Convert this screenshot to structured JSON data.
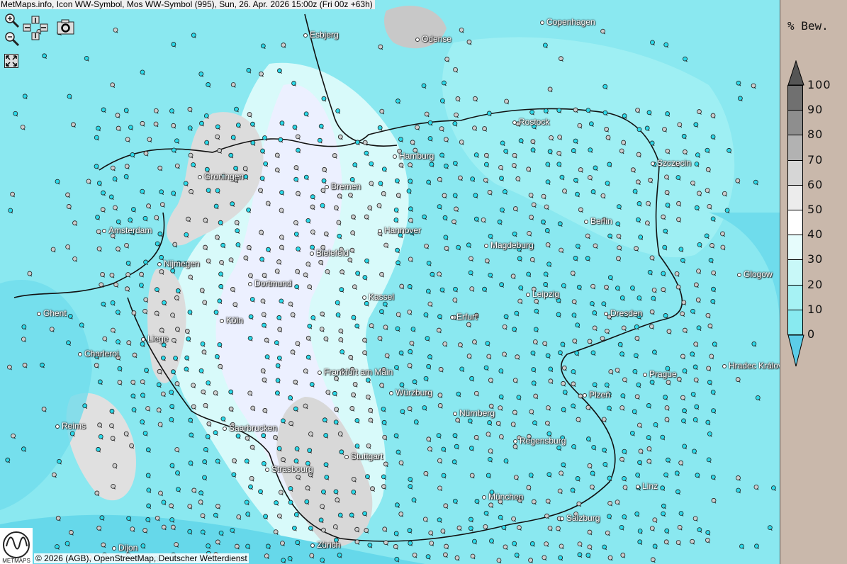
{
  "title": "MetMaps.info, Icon WW-Symbol, Mos WW-Symbol (995), Sun, 26. Apr. 2026 15:00z (Fri 00z +63h)",
  "controls": [
    "zoom-in-icon",
    "zoom-out-icon",
    "pan-arrows-icon",
    "camera-icon",
    "fullscreen-icon"
  ],
  "legend": {
    "title": "% Bew.",
    "ticks": [
      "100",
      "90",
      "80",
      "70",
      "60",
      "50",
      "40",
      "30",
      "20",
      "10",
      "0"
    ],
    "colors": [
      "#707070",
      "#8e8e8e",
      "#b2b2b2",
      "#d6d6d6",
      "#ececec",
      "#ffffff",
      "#e6fcfc",
      "#c8f8f8",
      "#a6f2f4",
      "#88eaf0"
    ],
    "over_color": "#555555",
    "under_color": "#5ccde8"
  },
  "cities": [
    "Esbjerg",
    "Odense",
    "Copenhagen",
    "Rostock",
    "Szczecin",
    "Hamburg",
    "Groningen",
    "Bremen",
    "Amsterdam",
    "Berlin",
    "Hannover",
    "Bielefeld",
    "Magdeburg",
    "Nijmegen",
    "Glogow",
    "Dortmund",
    "Kassel",
    "Leipzig",
    "Ghent",
    "Köln",
    "Erfurt",
    "Dresden",
    "Liege",
    "Charleroi",
    "Frankfurt am Main",
    "Prague",
    "Hradec Králové",
    "Würzburg",
    "Plzeň",
    "Nürnberg",
    "Reims",
    "Saarbrucken",
    "Regensburg",
    "Stuttgart",
    "Strasbourg",
    "Linz",
    "München",
    "Salzburg",
    "Dijon",
    "Zürich"
  ],
  "copyright": "© 2026 (AGB), OpenStreetMap, Deutscher Wetterdienst",
  "logo_text": "METMAPS"
}
